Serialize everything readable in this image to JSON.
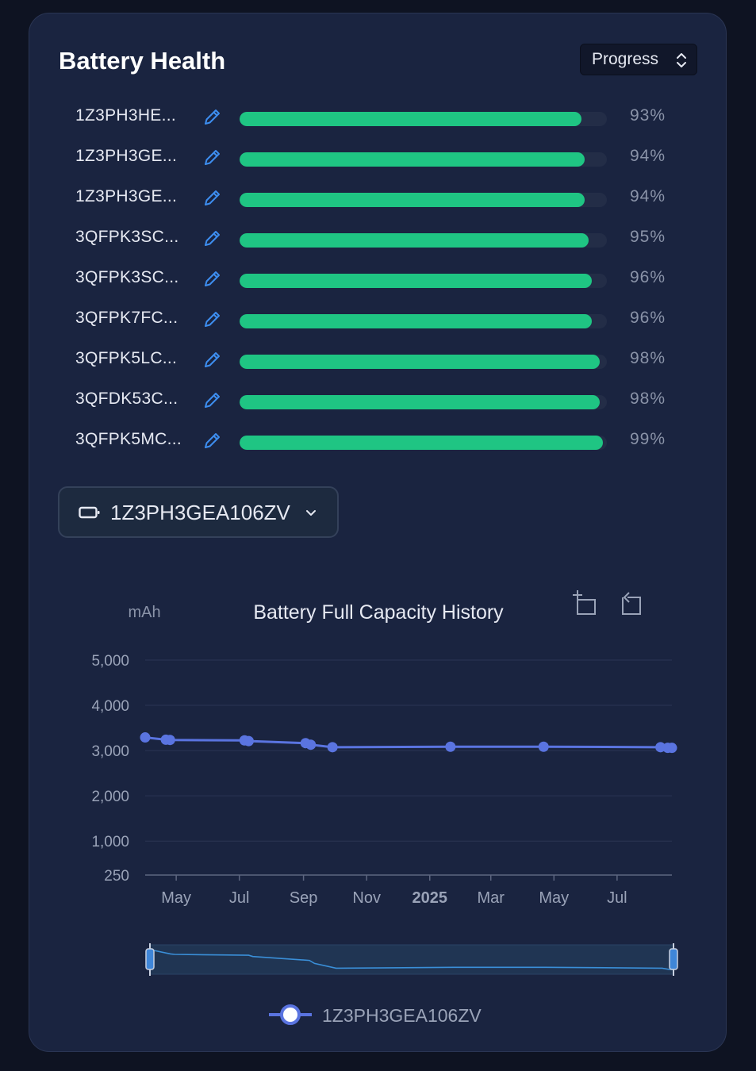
{
  "card": {
    "title": "Battery Health",
    "mode_select": "Progress"
  },
  "health_rows": [
    {
      "name": "1Z3PH3HE...",
      "value": "93%",
      "pct": 93
    },
    {
      "name": "1Z3PH3GE...",
      "value": "94%",
      "pct": 94
    },
    {
      "name": "1Z3PH3GE...",
      "value": "94%",
      "pct": 94
    },
    {
      "name": "3QFPK3SC...",
      "value": "95%",
      "pct": 95
    },
    {
      "name": "3QFPK3SC...",
      "value": "96%",
      "pct": 96
    },
    {
      "name": "3QFPK7FC...",
      "value": "96%",
      "pct": 96
    },
    {
      "name": "3QFPK5LC...",
      "value": "98%",
      "pct": 98
    },
    {
      "name": "3QFDK53C...",
      "value": "98%",
      "pct": 98
    },
    {
      "name": "3QFPK5MC...",
      "value": "99%",
      "pct": 99
    }
  ],
  "device_select": {
    "value": "1Z3PH3GEA106ZV",
    "icon": "battery-icon"
  },
  "toolbox": {
    "icons": [
      "zoom-select-icon",
      "zoom-reset-icon"
    ]
  },
  "colors": {
    "bar_fill": "#1fc583",
    "line": "#5a74e0",
    "card_bg": "#1a2440"
  },
  "chart_data": {
    "type": "line",
    "title": "Battery Full Capacity History",
    "ylabel": "mAh",
    "xlabel": "",
    "ylim": [
      250,
      5000
    ],
    "y_ticks": [
      "5,000",
      "4,000",
      "3,000",
      "2,000",
      "1,000",
      "250"
    ],
    "y_tick_values": [
      5000,
      4000,
      3000,
      2000,
      1000,
      250
    ],
    "x_ticks": [
      {
        "label": "May",
        "date": "2024-05-01",
        "bold": false
      },
      {
        "label": "Jul",
        "date": "2024-07-01",
        "bold": false
      },
      {
        "label": "Sep",
        "date": "2024-09-01",
        "bold": false
      },
      {
        "label": "Nov",
        "date": "2024-11-01",
        "bold": false
      },
      {
        "label": "2025",
        "date": "2025-01-01",
        "bold": true
      },
      {
        "label": "Mar",
        "date": "2025-03-01",
        "bold": false
      },
      {
        "label": "May",
        "date": "2025-05-01",
        "bold": false
      },
      {
        "label": "Jul",
        "date": "2025-07-01",
        "bold": false
      }
    ],
    "x_range": [
      "2024-04-01",
      "2025-08-23"
    ],
    "grid": true,
    "legend": "bottom",
    "series": [
      {
        "name": "1Z3PH3GEA106ZV",
        "points": [
          {
            "x": "2024-04-01",
            "y": 3290
          },
          {
            "x": "2024-04-21",
            "y": 3240
          },
          {
            "x": "2024-04-25",
            "y": 3235
          },
          {
            "x": "2024-07-06",
            "y": 3225
          },
          {
            "x": "2024-07-10",
            "y": 3210
          },
          {
            "x": "2024-09-03",
            "y": 3165
          },
          {
            "x": "2024-09-08",
            "y": 3130
          },
          {
            "x": "2024-09-29",
            "y": 3075
          },
          {
            "x": "2025-01-21",
            "y": 3085
          },
          {
            "x": "2025-04-21",
            "y": 3085
          },
          {
            "x": "2025-08-12",
            "y": 3075
          },
          {
            "x": "2025-08-19",
            "y": 3060
          },
          {
            "x": "2025-08-23",
            "y": 3060
          }
        ]
      }
    ]
  }
}
